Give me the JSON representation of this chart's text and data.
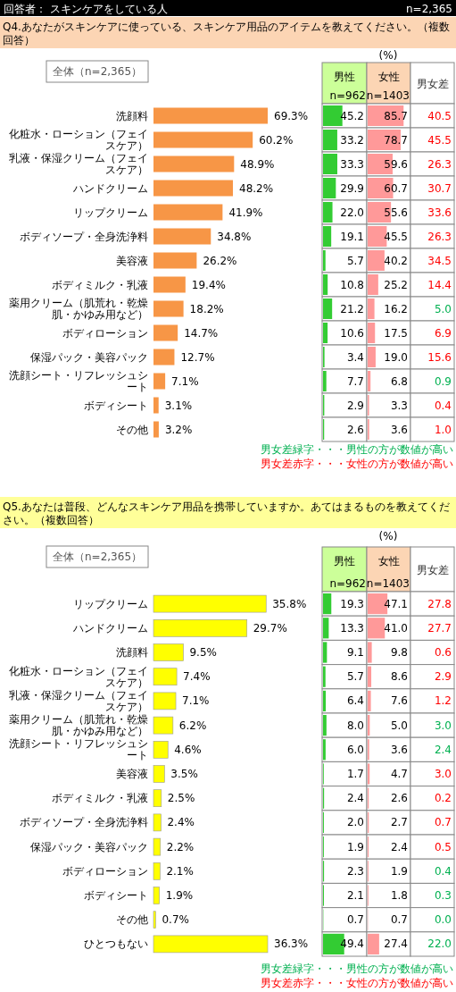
{
  "chart_data": [
    {
      "type": "bar",
      "orientation": "horizontal",
      "title": "Q4.あなたがスキンケアに使っている、スキンケア用品のアイテムを教えてください。（複数回答）",
      "annotations": [
        "回答者： スキンケアをしている人",
        "n=2,365"
      ],
      "legend": "top left",
      "categories": [
        "洗顔料",
        "化粧水・ローション（フェイスケア）",
        "乳液・保湿クリーム（フェイスケア）",
        "ハンドクリーム",
        "リップクリーム",
        "ボディソープ・全身洗浄料",
        "美容液",
        "ボディミルク・乳液",
        "薬用クリーム（肌荒れ・乾燥肌・かゆみ用など）",
        "ボディローション",
        "保湿パック・美容パック",
        "洗顔シート・リフレッシュシート",
        "ボディシート",
        "その他"
      ],
      "series": [
        {
          "name": "全体（n=2,365）",
          "color": "#f79646",
          "values": [
            69.3,
            60.2,
            48.9,
            48.2,
            41.9,
            34.8,
            26.2,
            19.4,
            18.2,
            14.7,
            12.7,
            7.1,
            3.1,
            3.2
          ],
          "value_labels": [
            "69.3%",
            "60.2%",
            "48.9%",
            "48.2%",
            "41.9%",
            "34.8%",
            "26.2%",
            "19.4%",
            "18.2%",
            "14.7%",
            "12.7%",
            "7.1%",
            "3.1%",
            "3.2%"
          ]
        }
      ]
    },
    {
      "type": "bar",
      "orientation": "horizontal",
      "title": "男性",
      "subtitle": "n=962",
      "annotations": [
        "(%)"
      ],
      "xlim": [
        0,
        100
      ],
      "categories": [
        null,
        null,
        null,
        null,
        null,
        null,
        null,
        null,
        null,
        null,
        null,
        null,
        null,
        null
      ],
      "color": "#33cc33",
      "values": [
        45.2,
        33.2,
        33.3,
        29.9,
        22.0,
        19.1,
        5.7,
        10.8,
        21.2,
        10.6,
        3.4,
        7.7,
        2.9,
        2.6
      ],
      "value_labels": [
        "45.2",
        "33.2",
        "33.3",
        "29.9",
        "22.0",
        "19.1",
        "5.7",
        "10.8",
        "21.2",
        "10.6",
        "3.4",
        "7.7",
        "2.9",
        "2.6"
      ]
    },
    {
      "type": "bar",
      "orientation": "horizontal",
      "title": "女性",
      "subtitle": "n=1403",
      "xlim": [
        0,
        100
      ],
      "categories": [
        null,
        null,
        null,
        null,
        null,
        null,
        null,
        null,
        null,
        null,
        null,
        null,
        null,
        null
      ],
      "color": "#ff9999",
      "values": [
        85.7,
        78.7,
        59.6,
        60.7,
        55.6,
        45.5,
        40.2,
        25.2,
        16.2,
        17.5,
        19.0,
        6.8,
        3.3,
        3.6
      ],
      "value_labels": [
        "85.7",
        "78.7",
        "59.6",
        "60.7",
        "55.6",
        "45.5",
        "40.2",
        "25.2",
        "16.2",
        "17.5",
        "19.0",
        "6.8",
        "3.3",
        "3.6"
      ]
    },
    {
      "type": "other",
      "title": "男女差",
      "annotations": [
        "男女差緑字・・・男性の方が数値が高い",
        "男女差赤字・・・女性の方が数値が高い"
      ],
      "categories": [
        null,
        null,
        null,
        null,
        null,
        null,
        null,
        null,
        null,
        null,
        null,
        null,
        null,
        null
      ],
      "values": [
        40.5,
        45.5,
        26.3,
        30.7,
        33.6,
        26.3,
        34.5,
        14.4,
        5.0,
        6.9,
        15.6,
        0.9,
        0.4,
        1.0
      ],
      "value_labels": [
        "40.5",
        "45.5",
        "26.3",
        "30.7",
        "33.6",
        "26.3",
        "34.5",
        "14.4",
        "5.0",
        "6.9",
        "15.6",
        "0.9",
        "0.4",
        "1.0"
      ],
      "colors": [
        "#ff0000",
        "#ff0000",
        "#ff0000",
        "#ff0000",
        "#ff0000",
        "#ff0000",
        "#ff0000",
        "#ff0000",
        "#00b050",
        "#ff0000",
        "#ff0000",
        "#00b050",
        "#ff0000",
        "#ff0000"
      ]
    },
    {
      "type": "bar",
      "orientation": "horizontal",
      "title": "Q5.あなたは普段、どんなスキンケア用品を携帯していますか。あてはまるものを教えてください。（複数回答）",
      "legend": "top left",
      "categories": [
        "リップクリーム",
        "ハンドクリーム",
        "洗顔料",
        "化粧水・ローション（フェイスケア）",
        "乳液・保湿クリーム（フェイスケア）",
        "薬用クリーム（肌荒れ・乾燥肌・かゆみ用など）",
        "洗顔シート・リフレッシュシート",
        "美容液",
        "ボディミルク・乳液",
        "ボディソープ・全身洗浄料",
        "保湿パック・美容パック",
        "ボディローション",
        "ボディシート",
        "その他",
        "ひとつもない"
      ],
      "series": [
        {
          "name": "全体（n=2,365）",
          "color": "#ffff00",
          "values": [
            35.8,
            29.7,
            9.5,
            7.4,
            7.1,
            6.2,
            4.6,
            3.5,
            2.5,
            2.4,
            2.2,
            2.1,
            1.9,
            0.7,
            36.3
          ],
          "value_labels": [
            "35.8%",
            "29.7%",
            "9.5%",
            "7.4%",
            "7.1%",
            "6.2%",
            "4.6%",
            "3.5%",
            "2.5%",
            "2.4%",
            "2.2%",
            "2.1%",
            "1.9%",
            "0.7%",
            "36.3%"
          ]
        }
      ]
    },
    {
      "type": "bar",
      "orientation": "horizontal",
      "title": "男性",
      "subtitle": "n=962",
      "annotations": [
        "(%)"
      ],
      "xlim": [
        0,
        100
      ],
      "categories": [
        null,
        null,
        null,
        null,
        null,
        null,
        null,
        null,
        null,
        null,
        null,
        null,
        null,
        null,
        null
      ],
      "color": "#33cc33",
      "values": [
        19.3,
        13.3,
        9.1,
        5.7,
        6.4,
        8.0,
        6.0,
        1.7,
        2.4,
        2.0,
        1.9,
        2.3,
        2.1,
        0.7,
        49.4
      ],
      "value_labels": [
        "19.3",
        "13.3",
        "9.1",
        "5.7",
        "6.4",
        "8.0",
        "6.0",
        "1.7",
        "2.4",
        "2.0",
        "1.9",
        "2.3",
        "2.1",
        "0.7",
        "49.4"
      ]
    },
    {
      "type": "bar",
      "orientation": "horizontal",
      "title": "女性",
      "subtitle": "n=1403",
      "xlim": [
        0,
        100
      ],
      "categories": [
        null,
        null,
        null,
        null,
        null,
        null,
        null,
        null,
        null,
        null,
        null,
        null,
        null,
        null,
        null
      ],
      "color": "#ff9999",
      "values": [
        47.1,
        41.0,
        9.8,
        8.6,
        7.6,
        5.0,
        3.6,
        4.7,
        2.6,
        2.7,
        2.4,
        1.9,
        1.8,
        0.7,
        27.4
      ],
      "value_labels": [
        "47.1",
        "41.0",
        "9.8",
        "8.6",
        "7.6",
        "5.0",
        "3.6",
        "4.7",
        "2.6",
        "2.7",
        "2.4",
        "1.9",
        "1.8",
        "0.7",
        "27.4"
      ]
    },
    {
      "type": "other",
      "title": "男女差",
      "annotations": [
        "男女差緑字・・・男性の方が数値が高い",
        "男女差赤字・・・女性の方が数値が高い"
      ],
      "categories": [
        null,
        null,
        null,
        null,
        null,
        null,
        null,
        null,
        null,
        null,
        null,
        null,
        null,
        null,
        null
      ],
      "values": [
        27.8,
        27.7,
        0.6,
        2.9,
        1.2,
        3.0,
        2.4,
        3.0,
        0.2,
        0.7,
        0.5,
        0.4,
        0.3,
        0.0,
        22.0
      ],
      "value_labels": [
        "27.8",
        "27.7",
        "0.6",
        "2.9",
        "1.2",
        "3.0",
        "2.4",
        "3.0",
        "0.2",
        "0.7",
        "0.5",
        "0.4",
        "0.3",
        "0.0",
        "22.0"
      ],
      "colors": [
        "#ff0000",
        "#ff0000",
        "#ff0000",
        "#ff0000",
        "#ff0000",
        "#00b050",
        "#00b050",
        "#ff0000",
        "#ff0000",
        "#ff0000",
        "#ff0000",
        "#00b050",
        "#00b050",
        "#00b050",
        "#00b050"
      ]
    }
  ]
}
